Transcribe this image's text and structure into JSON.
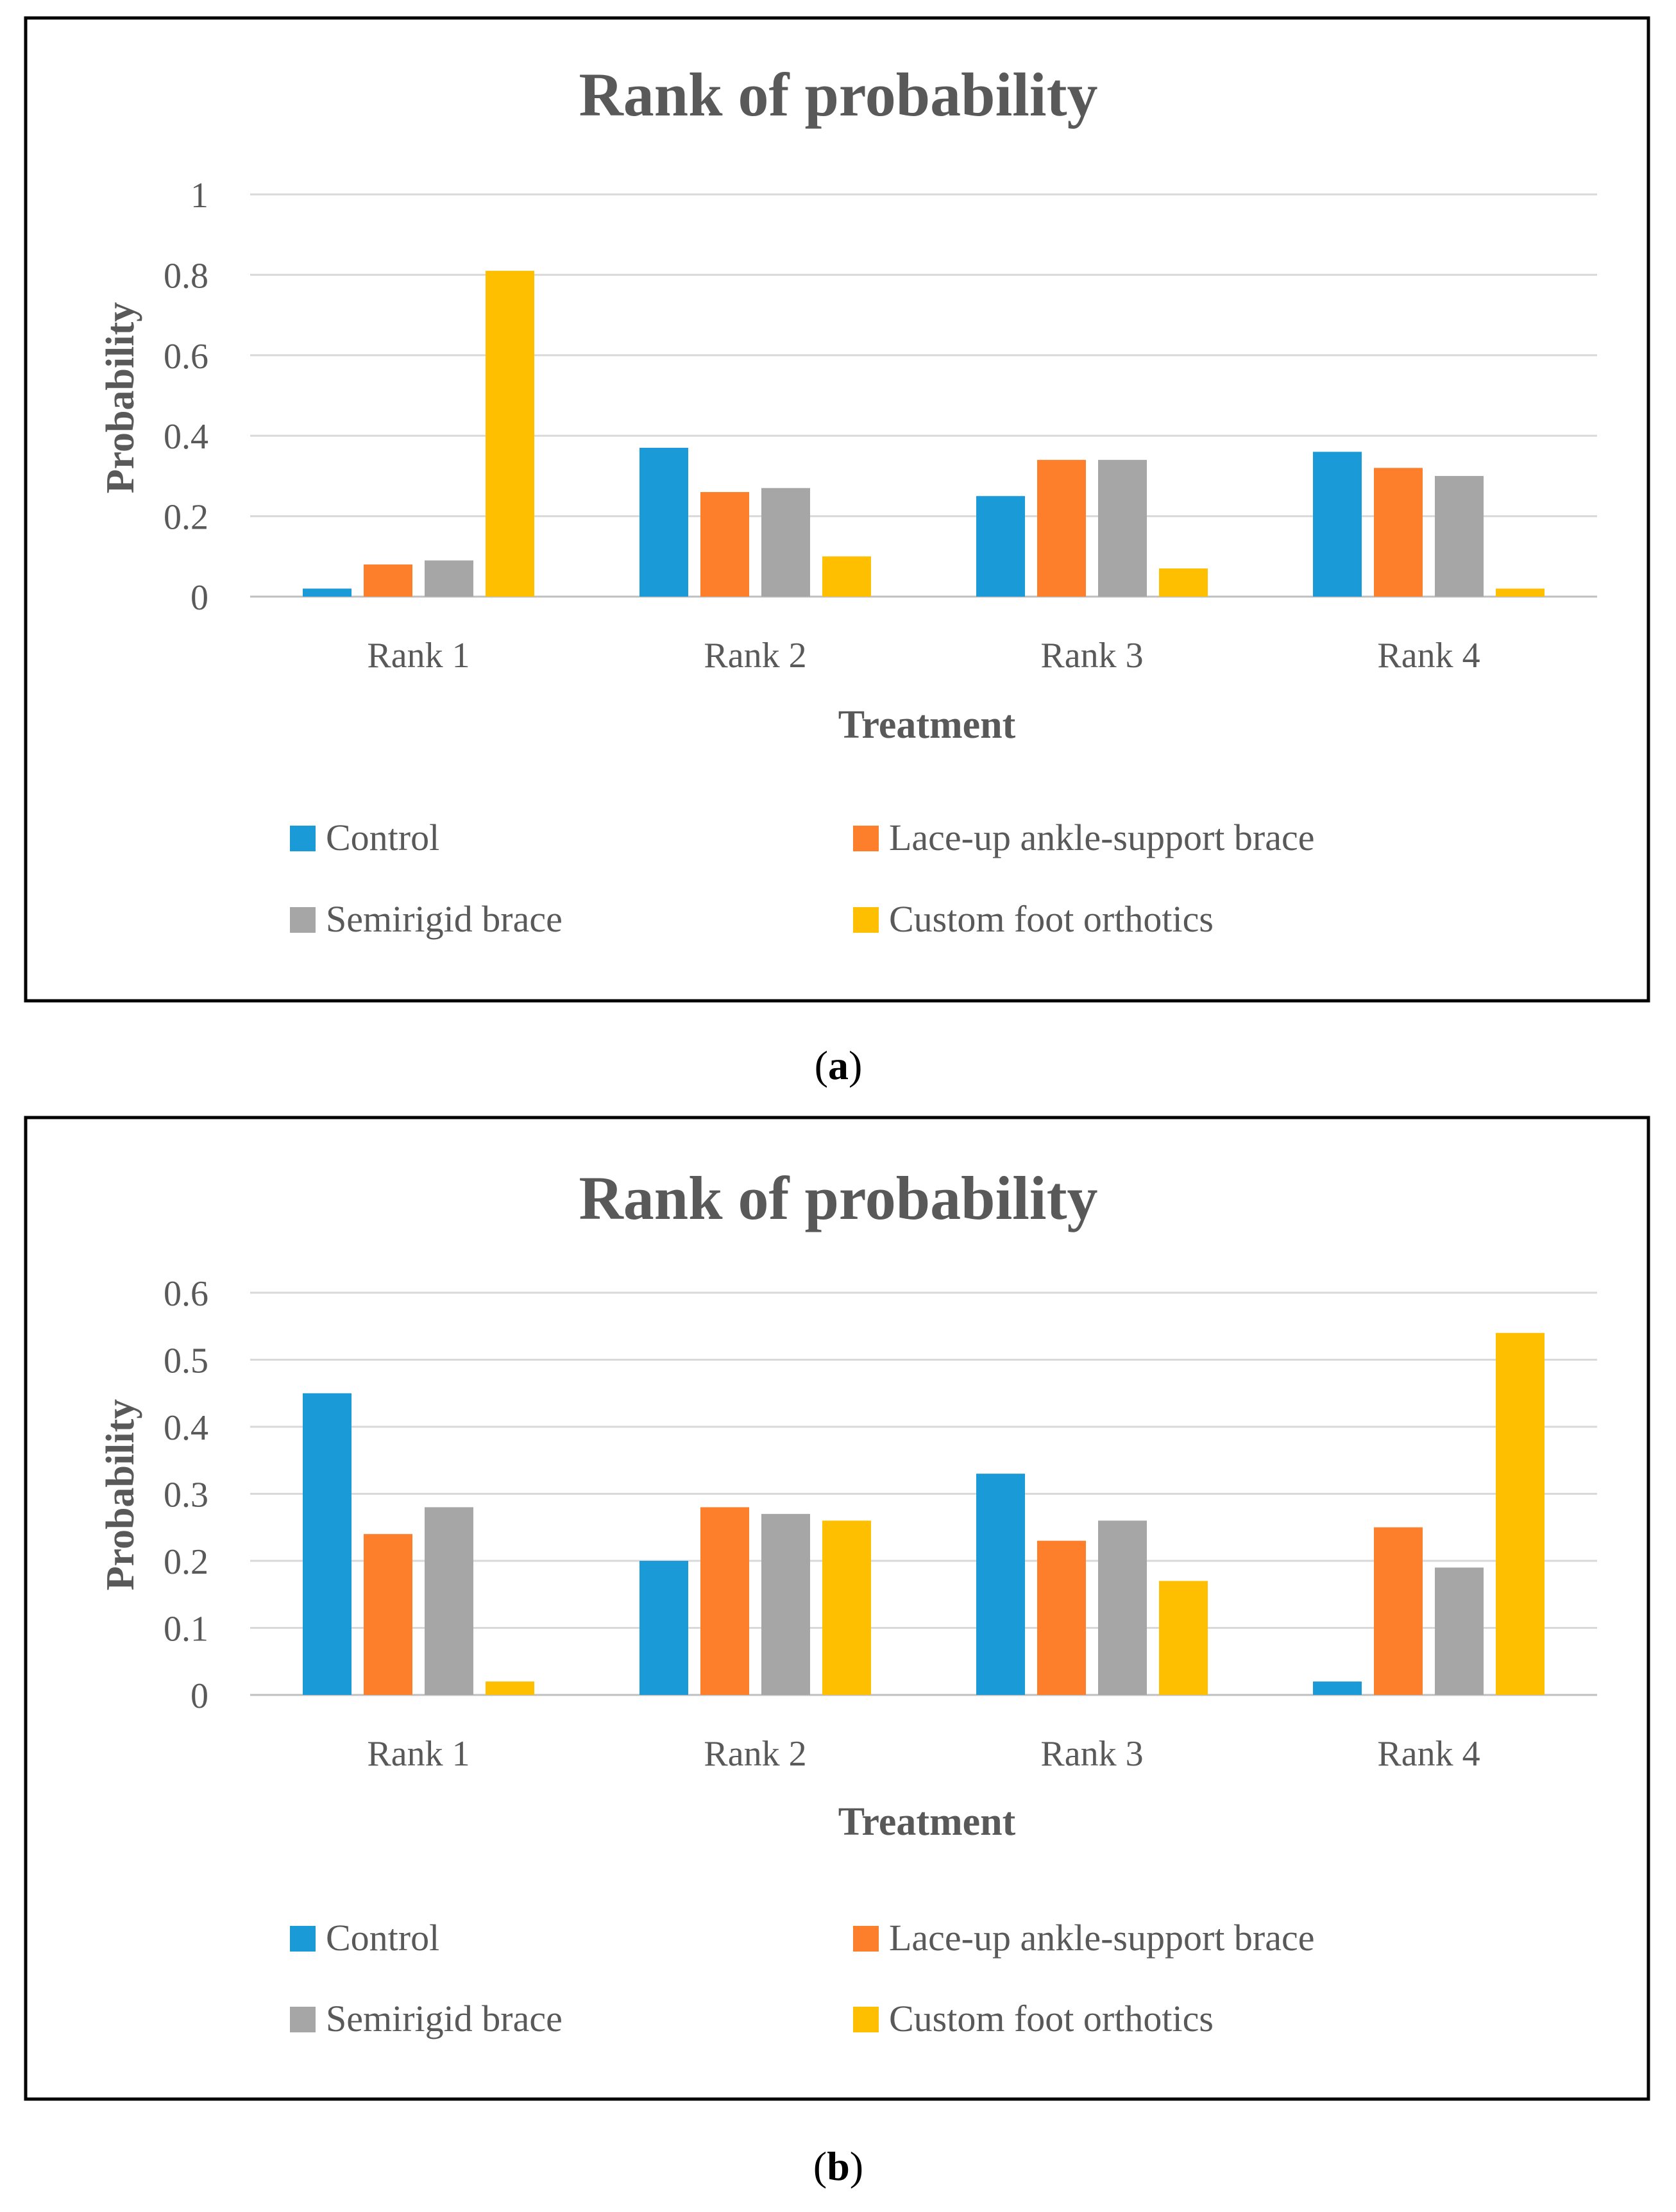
{
  "colors": {
    "control": "#1a9ad7",
    "lace_up": "#fd7f2c",
    "semirigid": "#a6a6a6",
    "custom": "#fdbf00",
    "text": "#595959",
    "grid": "#d9d9d9",
    "frame": "#000000"
  },
  "chart_data": [
    {
      "type": "bar",
      "panel_label": "a",
      "title": "Rank of probability",
      "xlabel": "Treatment",
      "ylabel": "Probability",
      "ylim": [
        0,
        1
      ],
      "yticks": [
        "0",
        "0.2",
        "0.4",
        "0.6",
        "0.8",
        "1"
      ],
      "ytick_values": [
        0,
        0.2,
        0.4,
        0.6,
        0.8,
        1
      ],
      "grid": true,
      "legend_position": "bottom",
      "categories": [
        "Rank 1",
        "Rank 2",
        "Rank 3",
        "Rank 4"
      ],
      "series": [
        {
          "name": "Control",
          "color_key": "control",
          "values": [
            0.02,
            0.37,
            0.25,
            0.36
          ]
        },
        {
          "name": "Lace-up ankle-support brace",
          "color_key": "lace_up",
          "values": [
            0.08,
            0.26,
            0.34,
            0.32
          ]
        },
        {
          "name": "Semirigid brace",
          "color_key": "semirigid",
          "values": [
            0.09,
            0.27,
            0.34,
            0.3
          ]
        },
        {
          "name": "Custom foot orthotics",
          "color_key": "custom",
          "values": [
            0.81,
            0.1,
            0.07,
            0.02
          ]
        }
      ]
    },
    {
      "type": "bar",
      "panel_label": "b",
      "title": "Rank of probability",
      "xlabel": "Treatment",
      "ylabel": "Probability",
      "ylim": [
        0,
        0.6
      ],
      "yticks": [
        "0",
        "0.1",
        "0.2",
        "0.3",
        "0.4",
        "0.5",
        "0.6"
      ],
      "ytick_values": [
        0,
        0.1,
        0.2,
        0.3,
        0.4,
        0.5,
        0.6
      ],
      "grid": true,
      "legend_position": "bottom",
      "categories": [
        "Rank 1",
        "Rank 2",
        "Rank 3",
        "Rank 4"
      ],
      "series": [
        {
          "name": "Control",
          "color_key": "control",
          "values": [
            0.45,
            0.2,
            0.33,
            0.02
          ]
        },
        {
          "name": "Lace-up ankle-support brace",
          "color_key": "lace_up",
          "values": [
            0.24,
            0.28,
            0.23,
            0.25
          ]
        },
        {
          "name": "Semirigid brace",
          "color_key": "semirigid",
          "values": [
            0.28,
            0.27,
            0.26,
            0.19
          ]
        },
        {
          "name": "Custom foot orthotics",
          "color_key": "custom",
          "values": [
            0.02,
            0.26,
            0.17,
            0.54
          ]
        }
      ]
    }
  ]
}
